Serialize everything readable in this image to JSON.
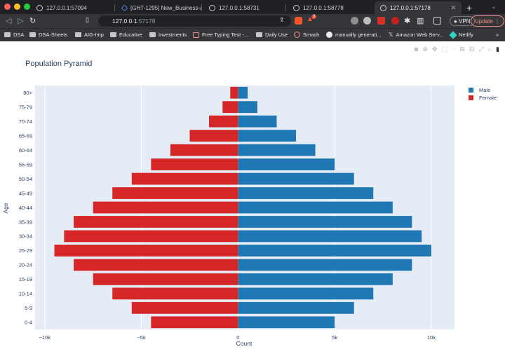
{
  "browser": {
    "tabs": [
      {
        "title": "127.0.0.1:57094"
      },
      {
        "title": "[GHT-1295] New_Business-A"
      },
      {
        "title": "127.0.0.1:58731"
      },
      {
        "title": "127.0.0.1:58778"
      },
      {
        "title": "127.0.0.1:57178"
      }
    ],
    "url_host": "127.0.0.1",
    "url_port": ":57178",
    "vpn_label": "VPN",
    "update_label": "Update",
    "brave_badge": "3",
    "bookmarks": [
      {
        "label": "DSA",
        "icon": "folder-icon"
      },
      {
        "label": "DSA-Sheets",
        "icon": "folder-icon"
      },
      {
        "label": "AIG-Imp",
        "icon": "folder-icon"
      },
      {
        "label": "Educative",
        "icon": "folder-icon"
      },
      {
        "label": "Investments",
        "icon": "folder-icon"
      },
      {
        "label": "Free Typing Test -...",
        "icon": "typing-icon"
      },
      {
        "label": "Daily Use",
        "icon": "folder-icon"
      },
      {
        "label": "Smash",
        "icon": "smash-icon"
      },
      {
        "label": "manually generati...",
        "icon": "google-icon"
      },
      {
        "label": "Amazon Web Serv...",
        "icon": "x-icon"
      },
      {
        "label": "Netlify",
        "icon": "netlify-icon"
      }
    ]
  },
  "chart_data": {
    "type": "bar",
    "orientation": "horizontal",
    "barmode": "overlay",
    "title": "Population Pyramid",
    "xlabel": "Count",
    "ylabel": "Age",
    "categories": [
      "0-4",
      "5-9",
      "10-14",
      "15-19",
      "20-24",
      "25-29",
      "30-34",
      "35-39",
      "40-44",
      "45-49",
      "50-54",
      "55-59",
      "60-64",
      "65-69",
      "70-74",
      "75-79",
      "80+"
    ],
    "series": [
      {
        "name": "Male",
        "color": "#1f77b4",
        "values": [
          5000,
          6000,
          7000,
          8000,
          9000,
          10000,
          9500,
          9000,
          8000,
          7000,
          6000,
          5000,
          4000,
          3000,
          2000,
          1000,
          500
        ]
      },
      {
        "name": "Female",
        "color": "#d62728",
        "values": [
          -4500,
          -5500,
          -6500,
          -7500,
          -8500,
          -9500,
          -9000,
          -8500,
          -7500,
          -6500,
          -5500,
          -4500,
          -3500,
          -2500,
          -1500,
          -800,
          -400
        ]
      }
    ],
    "xlim": [
      -10500,
      11200
    ],
    "xticks": [
      -10000,
      -5000,
      0,
      5000,
      10000
    ],
    "xticklabels": [
      "−10k",
      "−5k",
      "0",
      "5k",
      "10k"
    ],
    "legend_position": "top-right",
    "grid": true,
    "plot_bgcolor": "#e5ecf6"
  }
}
